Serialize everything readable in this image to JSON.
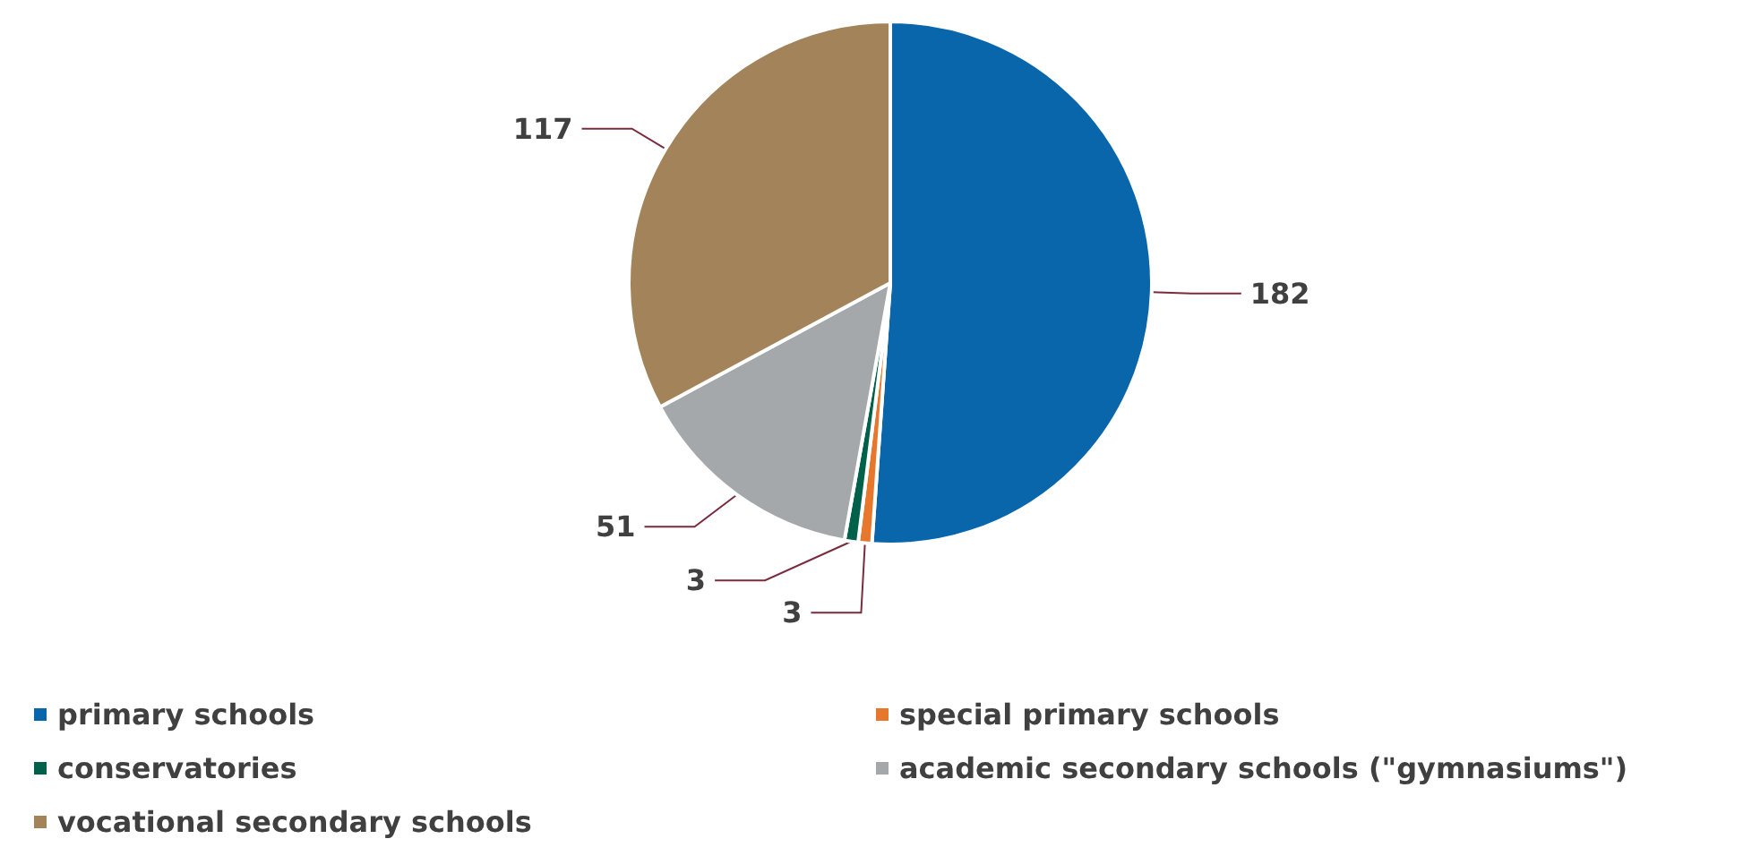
{
  "chart_data": {
    "type": "pie",
    "categories": [
      "primary schools",
      "special primary schools",
      "conservatories",
      "academic secondary schools (\"gymnasiums\")",
      "vocational secondary schools"
    ],
    "values": [
      182,
      3,
      3,
      51,
      117
    ],
    "colors": [
      "#0a66aa",
      "#e8772e",
      "#00614b",
      "#a5a8ab",
      "#a3845a"
    ],
    "data_labels": true,
    "legend": "bottom"
  }
}
